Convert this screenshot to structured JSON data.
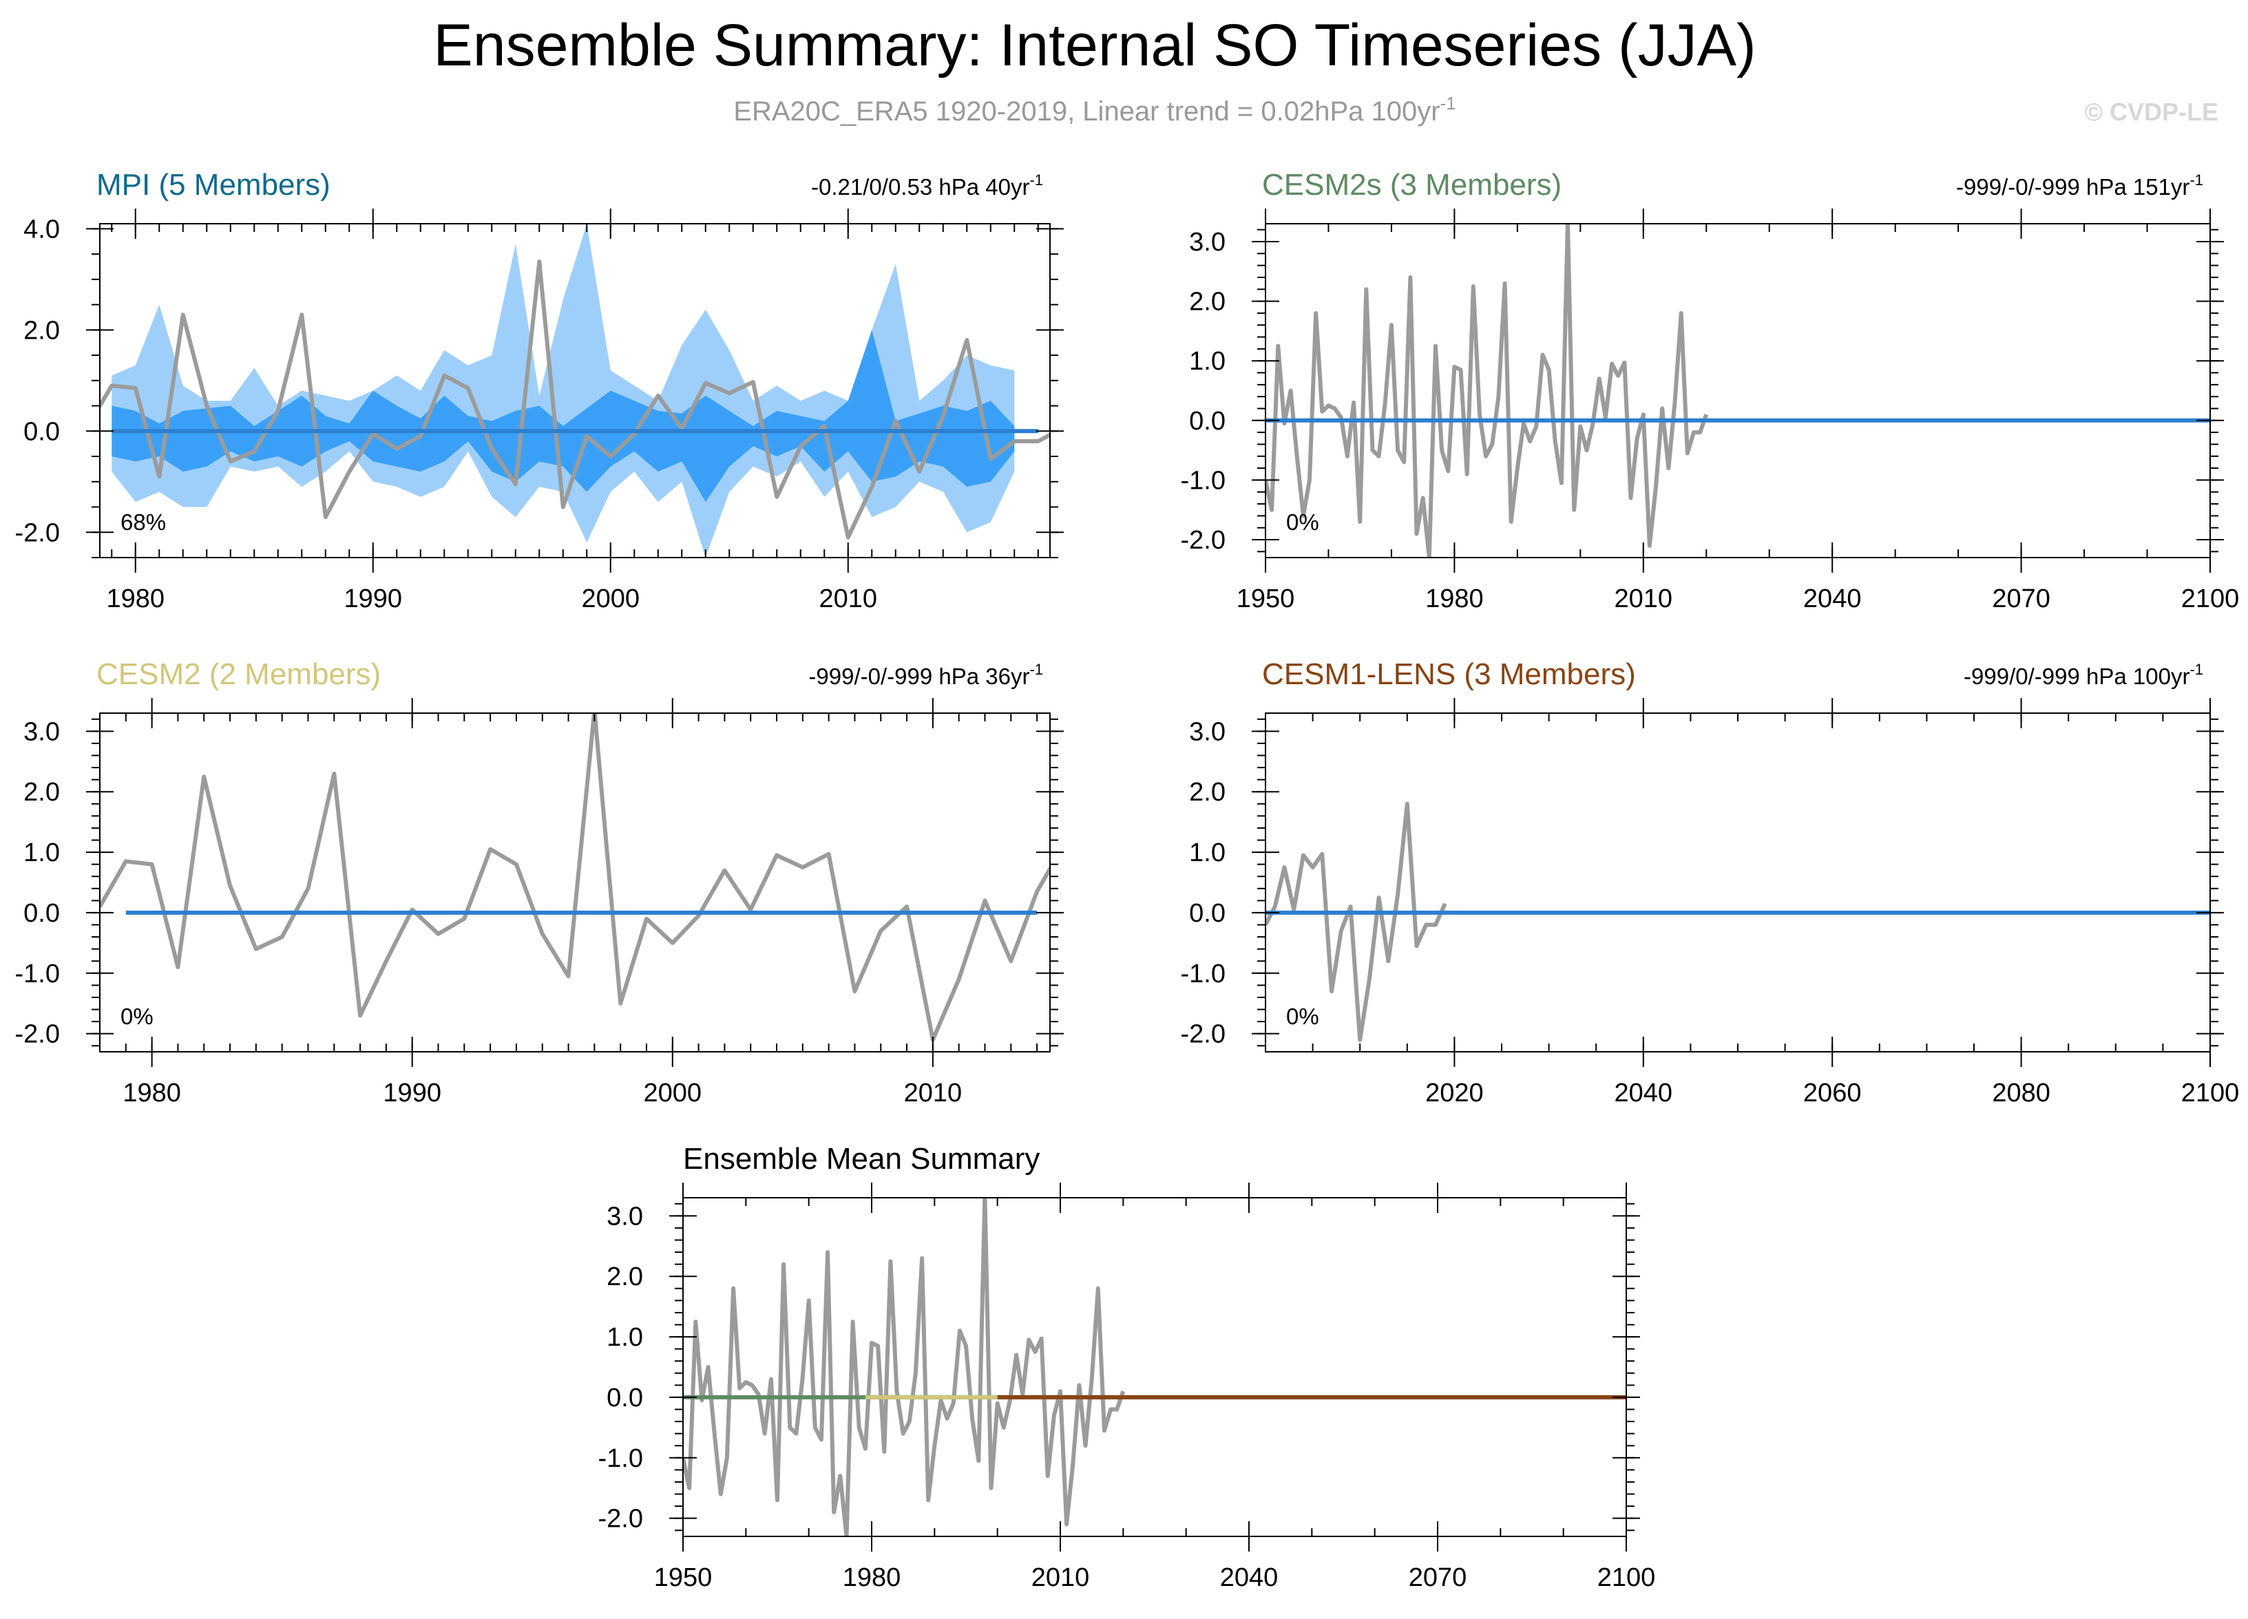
{
  "title": "Ensemble Summary: Internal SO Timeseries (JJA)",
  "subtitle": "ERA20C_ERA5 1920-2019, Linear trend = 0.02hPa 100yr",
  "subtitle_sup": "-1",
  "credit": "© CVDP-LE",
  "colors": {
    "obs": "#9b9b9b",
    "zero_line": "#2b7fd0",
    "shade_outer": "#9ecffb",
    "shade_inner": "#3aa0f7",
    "frame": "#000000",
    "credit": "#d7d7d7",
    "subtitle": "#999999"
  },
  "chart_data": [
    {
      "id": "mpi",
      "type": "line",
      "title": "MPI (5 Members)",
      "title_color": "#0e6a8c",
      "stat_text": "-0.21/0/0.53 hPa 40yr",
      "stat_sup": "-1",
      "percent_label": "68%",
      "xlim": [
        1978.5,
        2018.5
      ],
      "ylim": [
        -2.5,
        4.1
      ],
      "xticks": [
        1980,
        1990,
        2000,
        2010
      ],
      "xminor_step": 1,
      "yticks": [
        -2.0,
        0.0,
        2.0,
        4.0
      ],
      "ytick_labels": [
        "-2.0",
        "0.0",
        "2.0",
        "4.0"
      ],
      "yminor_step": 0.5,
      "ensemble_band": {
        "x_start": 1979,
        "outer_upper": [
          1.1,
          1.3,
          2.5,
          0.9,
          0.6,
          0.6,
          1.25,
          0.5,
          0.8,
          0.7,
          0.6,
          0.8,
          1.1,
          0.8,
          1.6,
          1.3,
          1.5,
          3.7,
          0.7,
          2.6,
          4.1,
          1.2,
          0.9,
          0.6,
          1.7,
          2.4,
          1.6,
          0.6,
          0.9,
          0.6,
          0.8,
          0.6,
          2.0,
          3.3,
          0.6,
          1.0,
          1.5,
          1.3,
          1.2
        ],
        "outer_lower": [
          -0.8,
          -1.4,
          -1.2,
          -1.5,
          -1.5,
          -0.7,
          -0.8,
          -0.7,
          -1.1,
          -0.8,
          -0.4,
          -1.0,
          -1.1,
          -1.3,
          -1.1,
          -0.4,
          -1.3,
          -1.7,
          -1.1,
          -1.2,
          -2.2,
          -1.2,
          -0.8,
          -1.4,
          -1.0,
          -2.5,
          -1.2,
          -0.7,
          -0.9,
          -0.6,
          -1.3,
          -0.8,
          -1.7,
          -1.5,
          -1.0,
          -1.2,
          -2.0,
          -1.8,
          -0.8
        ],
        "inner_upper": [
          0.5,
          0.4,
          0.15,
          0.4,
          0.45,
          0.5,
          0.1,
          0.4,
          0.7,
          0.3,
          0.15,
          0.8,
          0.5,
          0.25,
          0.7,
          0.3,
          0.2,
          0.4,
          0.5,
          0.1,
          0.45,
          0.8,
          0.6,
          0.4,
          0.35,
          0.7,
          0.4,
          0.1,
          0.4,
          0.3,
          0.2,
          0.6,
          2.0,
          0.2,
          0.35,
          0.5,
          0.4,
          0.6,
          0.1
        ],
        "inner_lower": [
          -0.5,
          -0.6,
          -0.5,
          -0.8,
          -0.7,
          -0.4,
          -0.6,
          -0.5,
          -0.7,
          -0.4,
          -0.2,
          -0.6,
          -0.7,
          -0.8,
          -0.6,
          -0.2,
          -0.8,
          -1.0,
          -0.6,
          -0.7,
          -1.2,
          -0.7,
          -0.4,
          -0.8,
          -0.6,
          -1.4,
          -0.7,
          -0.3,
          -0.5,
          -0.3,
          -0.8,
          -0.4,
          -1.0,
          -0.9,
          -0.6,
          -0.7,
          -1.1,
          -1.0,
          -0.4
        ]
      },
      "series": [
        {
          "role": "observations",
          "x_start": 1978,
          "values": [
            0.1,
            0.9,
            0.85,
            -0.9,
            2.3,
            0.5,
            -0.6,
            -0.4,
            0.4,
            2.3,
            -1.7,
            -0.8,
            -0.05,
            -0.35,
            -0.1,
            1.1,
            0.85,
            -0.35,
            -1.05,
            3.35,
            -1.5,
            -0.1,
            -0.5,
            -0.05,
            0.7,
            0.05,
            0.95,
            0.75,
            0.97,
            -1.3,
            -0.3,
            0.1,
            -2.1,
            -1.1,
            0.2,
            -0.8,
            0.3,
            1.8,
            -0.55,
            -0.2,
            -0.2,
            0.05
          ]
        },
        {
          "role": "ensemble_mean",
          "x_start": 1979,
          "values": [
            0,
            0,
            0,
            0,
            0,
            0,
            0,
            0,
            0,
            0,
            0,
            0,
            0,
            0,
            0,
            0,
            0,
            0,
            0,
            0,
            0,
            0,
            0,
            0,
            0,
            0,
            0,
            0,
            0,
            0,
            0,
            0,
            0,
            0,
            0,
            0,
            0,
            0,
            0,
            0
          ]
        }
      ]
    },
    {
      "id": "cesm2s",
      "type": "line",
      "title": "CESM2s (3 Members)",
      "title_color": "#5f8a63",
      "stat_text": "-999/-0/-999 hPa 151yr",
      "stat_sup": "-1",
      "percent_label": "0%",
      "xlim": [
        1950,
        2100
      ],
      "ylim": [
        -2.3,
        3.3
      ],
      "xticks": [
        1950,
        1980,
        2010,
        2040,
        2070,
        2100
      ],
      "xminor_step": 10,
      "yticks": [
        -2.0,
        -1.0,
        0.0,
        1.0,
        2.0,
        3.0
      ],
      "ytick_labels": [
        "-2.0",
        "-1.0",
        "0.0",
        "1.0",
        "2.0",
        "3.0"
      ],
      "yminor_step": 0.2,
      "series": [
        {
          "role": "observations",
          "x_start": 1950,
          "values": [
            -1.0,
            -1.5,
            1.25,
            -0.05,
            0.5,
            -0.6,
            -1.6,
            -1.0,
            1.8,
            0.15,
            0.25,
            0.2,
            0.05,
            -0.6,
            0.3,
            -1.7,
            2.2,
            -0.5,
            -0.6,
            0.3,
            1.6,
            -0.5,
            -0.7,
            2.4,
            -1.9,
            -1.3,
            -2.3,
            1.25,
            -0.5,
            -0.85,
            0.9,
            0.85,
            -0.9,
            2.25,
            0.1,
            -0.6,
            -0.4,
            0.4,
            2.3,
            -1.7,
            -0.8,
            -0.05,
            -0.35,
            -0.1,
            1.1,
            0.85,
            -0.35,
            -1.05,
            3.35,
            -1.5,
            -0.1,
            -0.5,
            -0.05,
            0.7,
            0.05,
            0.95,
            0.75,
            0.97,
            -1.3,
            -0.3,
            0.1,
            -2.1,
            -1.1,
            0.2,
            -0.8,
            0.3,
            1.8,
            -0.55,
            -0.2,
            -0.2,
            0.1
          ]
        },
        {
          "role": "ensemble_mean",
          "x_start": 1950,
          "x_end": 2100,
          "values": [
            0,
            0
          ]
        }
      ]
    },
    {
      "id": "cesm2",
      "type": "line",
      "title": "CESM2 (2 Members)",
      "title_color": "#d1c77a",
      "stat_text": "-999/-0/-999 hPa 36yr",
      "stat_sup": "-1",
      "percent_label": "0%",
      "xlim": [
        1978,
        2014.5
      ],
      "ylim": [
        -2.3,
        3.3
      ],
      "xticks": [
        1980,
        1990,
        2000,
        2010
      ],
      "xminor_step": 1,
      "yticks": [
        -2.0,
        -1.0,
        0.0,
        1.0,
        2.0,
        3.0
      ],
      "ytick_labels": [
        "-2.0",
        "-1.0",
        "0.0",
        "1.0",
        "2.0",
        "3.0"
      ],
      "yminor_step": 0.2,
      "series": [
        {
          "role": "observations",
          "x_start": 1978,
          "values": [
            0.1,
            0.85,
            0.8,
            -0.9,
            2.25,
            0.45,
            -0.6,
            -0.4,
            0.4,
            2.3,
            -1.7,
            -0.8,
            0.05,
            -0.35,
            -0.1,
            1.05,
            0.8,
            -0.35,
            -1.05,
            3.35,
            -1.5,
            -0.1,
            -0.5,
            -0.05,
            0.7,
            0.05,
            0.95,
            0.75,
            0.97,
            -1.3,
            -0.3,
            0.1,
            -2.1,
            -1.1,
            0.2,
            -0.8,
            0.35,
            1.1
          ]
        },
        {
          "role": "ensemble_mean",
          "x_start": 1979,
          "x_end": 2014,
          "values": [
            0,
            0
          ]
        }
      ]
    },
    {
      "id": "cesm1-lens",
      "type": "line",
      "title": "CESM1-LENS (3 Members)",
      "title_color": "#8a4413",
      "stat_text": "-999/0/-999 hPa 100yr",
      "stat_sup": "-1",
      "percent_label": "0%",
      "xlim": [
        2000,
        2100
      ],
      "ylim": [
        -2.3,
        3.3
      ],
      "xticks": [
        2020,
        2040,
        2060,
        2080,
        2100
      ],
      "xminor_step": 5,
      "yticks": [
        -2.0,
        -1.0,
        0.0,
        1.0,
        2.0,
        3.0
      ],
      "ytick_labels": [
        "-2.0",
        "-1.0",
        "0.0",
        "1.0",
        "2.0",
        "3.0"
      ],
      "yminor_step": 0.2,
      "series": [
        {
          "role": "observations",
          "x_start": 2000,
          "values": [
            -0.2,
            0.1,
            0.75,
            0.05,
            0.95,
            0.75,
            0.97,
            -1.3,
            -0.3,
            0.1,
            -2.1,
            -1.1,
            0.25,
            -0.8,
            0.3,
            1.8,
            -0.55,
            -0.2,
            -0.2,
            0.15
          ]
        },
        {
          "role": "ensemble_mean",
          "x_start": 2000,
          "x_end": 2100,
          "values": [
            0,
            0
          ]
        }
      ]
    },
    {
      "id": "ensemble-mean",
      "type": "line",
      "title": "Ensemble Mean Summary",
      "title_color": "#000000",
      "xlim": [
        1950,
        2100
      ],
      "ylim": [
        -2.3,
        3.3
      ],
      "xticks": [
        1950,
        1980,
        2010,
        2040,
        2070,
        2100
      ],
      "xminor_step": 10,
      "yticks": [
        -2.0,
        -1.0,
        0.0,
        1.0,
        2.0,
        3.0
      ],
      "ytick_labels": [
        "-2.0",
        "-1.0",
        "0.0",
        "1.0",
        "2.0",
        "3.0"
      ],
      "yminor_step": 0.2,
      "series": [
        {
          "role": "observations",
          "x_start": 1950,
          "values": [
            -1.0,
            -1.5,
            1.25,
            -0.05,
            0.5,
            -0.6,
            -1.6,
            -1.0,
            1.8,
            0.15,
            0.25,
            0.2,
            0.05,
            -0.6,
            0.3,
            -1.7,
            2.2,
            -0.5,
            -0.6,
            0.3,
            1.6,
            -0.5,
            -0.7,
            2.4,
            -1.9,
            -1.3,
            -2.3,
            1.25,
            -0.5,
            -0.85,
            0.9,
            0.85,
            -0.9,
            2.25,
            0.1,
            -0.6,
            -0.4,
            0.4,
            2.3,
            -1.7,
            -0.8,
            -0.05,
            -0.35,
            -0.1,
            1.1,
            0.85,
            -0.35,
            -1.05,
            3.35,
            -1.5,
            -0.1,
            -0.5,
            -0.05,
            0.7,
            0.05,
            0.95,
            0.75,
            0.97,
            -1.3,
            -0.3,
            0.1,
            -2.1,
            -1.1,
            0.2,
            -0.8,
            0.3,
            1.8,
            -0.55,
            -0.2,
            -0.2,
            0.1
          ]
        },
        {
          "role": "mean_mpi",
          "color": "#0e6a8c",
          "x_start": 1979,
          "x_end": 2018,
          "values": [
            0,
            0
          ]
        },
        {
          "role": "mean_cesm2s",
          "color": "#5f8a63",
          "x_start": 1950,
          "x_end": 2100,
          "values": [
            0,
            0
          ]
        },
        {
          "role": "mean_cesm2",
          "color": "#d1c77a",
          "x_start": 1979,
          "x_end": 2014,
          "values": [
            0,
            0
          ]
        },
        {
          "role": "mean_cesm1_lens",
          "color": "#8a4413",
          "x_start": 2000,
          "x_end": 2100,
          "values": [
            0,
            0
          ]
        }
      ]
    }
  ]
}
